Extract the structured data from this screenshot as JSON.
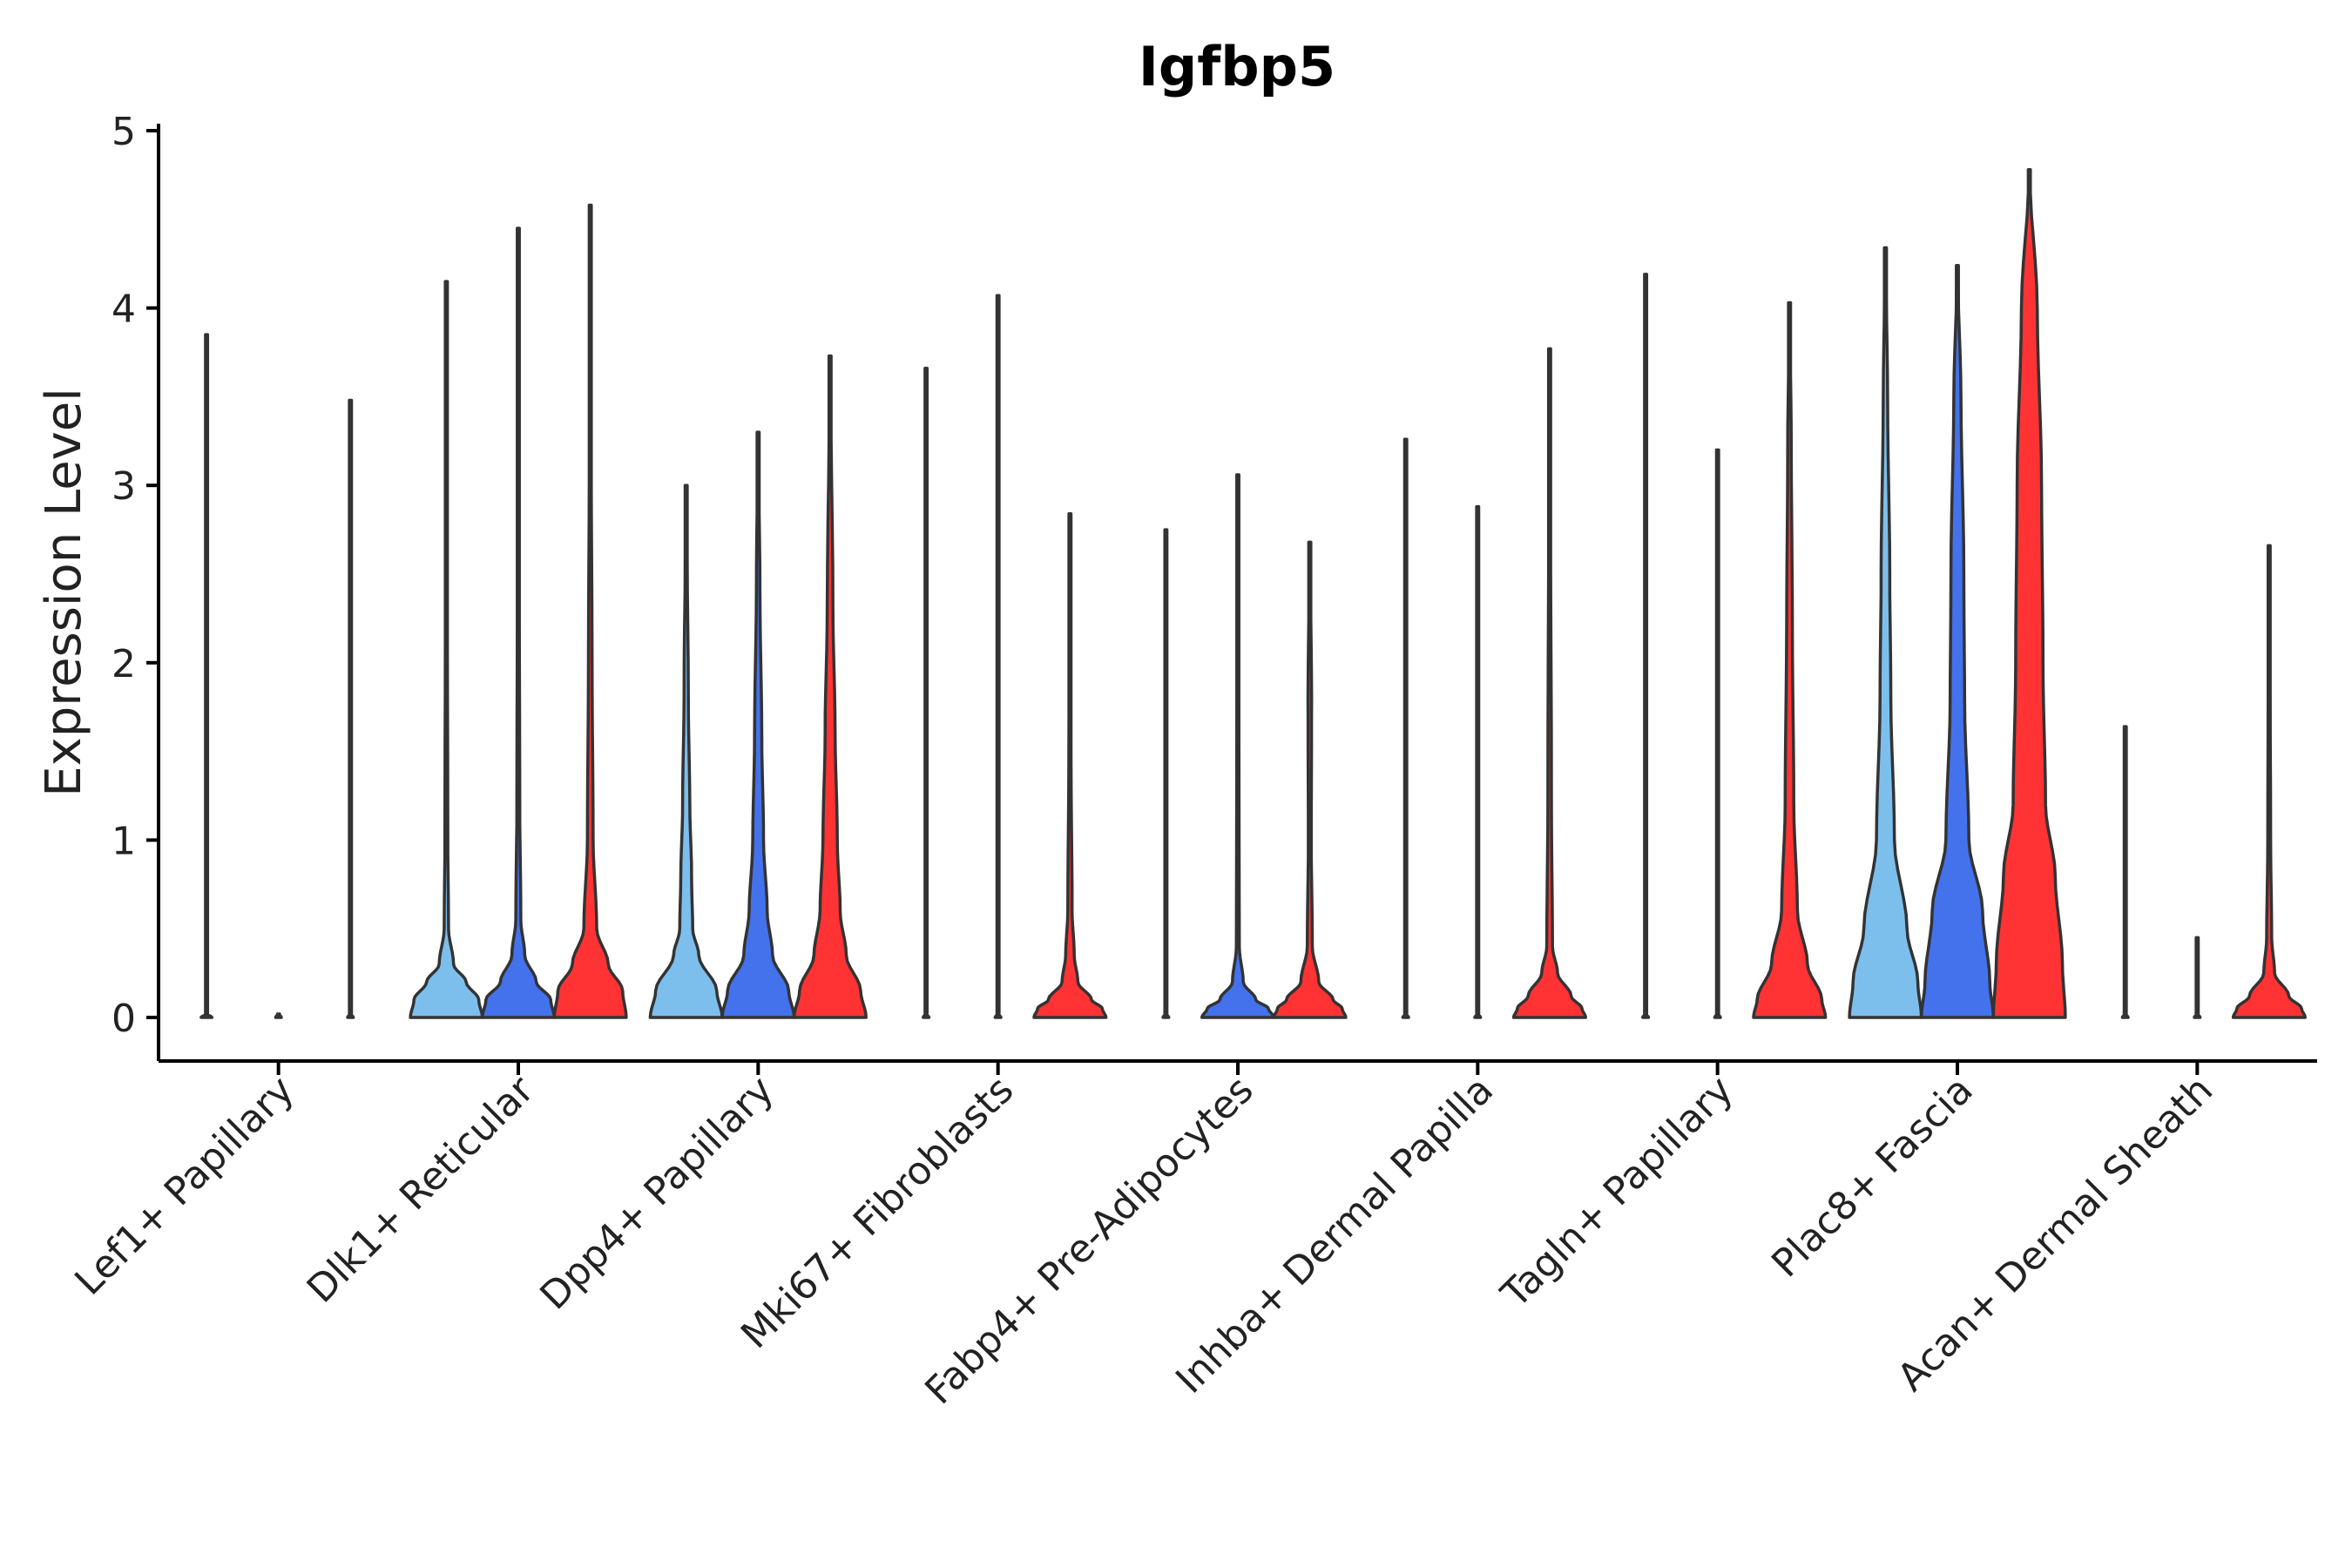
{
  "chart_data": {
    "type": "violin",
    "title": "Igfbp5",
    "xlabel": "",
    "ylabel": "Expression Level",
    "ylim": [
      -0.25,
      5.05
    ],
    "yticks": [
      0,
      1,
      2,
      3,
      4,
      5
    ],
    "grid": false,
    "legend": "none",
    "series": [
      {
        "name": "group 1",
        "color": "#7DBFEC"
      },
      {
        "name": "group 2",
        "color": "#4472EC"
      },
      {
        "name": "group 3",
        "color": "#FF3333"
      }
    ],
    "categories": [
      {
        "label": "Lef1+ Papillary",
        "violins": [
          {
            "max": 3.85,
            "shape": [
              [
                0,
                0.15
              ],
              [
                0.02,
                0.01
              ],
              [
                3.85,
                0.004
              ]
            ]
          },
          {
            "max": 0.0,
            "shape": [
              [
                0,
                0.08
              ],
              [
                0.02,
                0.01
              ]
            ]
          },
          {
            "max": 3.48,
            "shape": [
              [
                0,
                0.08
              ],
              [
                0.02,
                0.01
              ],
              [
                3.48,
                0.004
              ]
            ]
          }
        ]
      },
      {
        "label": "Dlk1+ Reticular",
        "violins": [
          {
            "max": 4.15,
            "shape": [
              [
                0,
                1.0
              ],
              [
                0.1,
                0.9
              ],
              [
                0.2,
                0.55
              ],
              [
                0.3,
                0.2
              ],
              [
                0.5,
                0.06
              ],
              [
                1.0,
                0.04
              ],
              [
                2.6,
                0.025
              ],
              [
                4.15,
                0.006
              ]
            ]
          },
          {
            "max": 4.45,
            "shape": [
              [
                0,
                1.0
              ],
              [
                0.1,
                0.9
              ],
              [
                0.2,
                0.5
              ],
              [
                0.35,
                0.18
              ],
              [
                0.55,
                0.07
              ],
              [
                1.2,
                0.04
              ],
              [
                2.7,
                0.025
              ],
              [
                4.45,
                0.006
              ]
            ]
          },
          {
            "max": 4.58,
            "shape": [
              [
                0,
                1.0
              ],
              [
                0.15,
                0.9
              ],
              [
                0.3,
                0.5
              ],
              [
                0.5,
                0.18
              ],
              [
                1.0,
                0.08
              ],
              [
                2.0,
                0.05
              ],
              [
                3.0,
                0.03
              ],
              [
                4.58,
                0.006
              ]
            ]
          }
        ]
      },
      {
        "label": "Dpp4+ Papillary",
        "violins": [
          {
            "max": 3.0,
            "shape": [
              [
                0,
                1.0
              ],
              [
                0.15,
                0.85
              ],
              [
                0.35,
                0.35
              ],
              [
                0.5,
                0.18
              ],
              [
                0.8,
                0.15
              ],
              [
                1.2,
                0.1
              ],
              [
                1.8,
                0.06
              ],
              [
                3.0,
                0.006
              ]
            ]
          },
          {
            "max": 3.3,
            "shape": [
              [
                0,
                1.0
              ],
              [
                0.15,
                0.85
              ],
              [
                0.35,
                0.4
              ],
              [
                0.6,
                0.25
              ],
              [
                1.0,
                0.15
              ],
              [
                1.6,
                0.1
              ],
              [
                2.4,
                0.05
              ],
              [
                3.3,
                0.006
              ]
            ]
          },
          {
            "max": 3.73,
            "shape": [
              [
                0,
                1.0
              ],
              [
                0.15,
                0.85
              ],
              [
                0.35,
                0.45
              ],
              [
                0.6,
                0.28
              ],
              [
                1.0,
                0.2
              ],
              [
                1.6,
                0.14
              ],
              [
                2.3,
                0.08
              ],
              [
                3.73,
                0.006
              ]
            ]
          }
        ]
      },
      {
        "label": "Mki67+ Fibroblasts",
        "violins": [
          {
            "max": 3.66,
            "shape": [
              [
                0,
                0.08
              ],
              [
                0.02,
                0.01
              ],
              [
                3.66,
                0.004
              ]
            ]
          },
          {
            "max": 4.07,
            "shape": [
              [
                0,
                0.08
              ],
              [
                0.02,
                0.01
              ],
              [
                4.07,
                0.004
              ]
            ]
          },
          {
            "max": 2.84,
            "shape": [
              [
                0,
                1.0
              ],
              [
                0.05,
                0.9
              ],
              [
                0.1,
                0.6
              ],
              [
                0.2,
                0.22
              ],
              [
                0.35,
                0.12
              ],
              [
                0.6,
                0.06
              ],
              [
                1.5,
                0.03
              ],
              [
                2.84,
                0.006
              ]
            ]
          }
        ]
      },
      {
        "label": "Fabp4+ Pre-Adipocytes",
        "violins": [
          {
            "max": 2.75,
            "shape": [
              [
                0,
                0.08
              ],
              [
                0.02,
                0.01
              ],
              [
                2.75,
                0.004
              ]
            ]
          },
          {
            "max": 3.06,
            "shape": [
              [
                0,
                1.0
              ],
              [
                0.05,
                0.85
              ],
              [
                0.1,
                0.5
              ],
              [
                0.2,
                0.15
              ],
              [
                0.4,
                0.04
              ],
              [
                3.06,
                0.006
              ]
            ]
          },
          {
            "max": 2.68,
            "shape": [
              [
                0,
                1.0
              ],
              [
                0.05,
                0.9
              ],
              [
                0.1,
                0.65
              ],
              [
                0.2,
                0.25
              ],
              [
                0.4,
                0.07
              ],
              [
                1.0,
                0.04
              ],
              [
                1.8,
                0.05
              ],
              [
                2.68,
                0.006
              ]
            ]
          }
        ]
      },
      {
        "label": "Inhba+ Dermal Papilla",
        "violins": [
          {
            "max": 3.26,
            "shape": [
              [
                0,
                0.08
              ],
              [
                0.02,
                0.01
              ],
              [
                3.26,
                0.004
              ]
            ]
          },
          {
            "max": 2.88,
            "shape": [
              [
                0,
                0.08
              ],
              [
                0.02,
                0.01
              ],
              [
                2.88,
                0.004
              ]
            ]
          },
          {
            "max": 3.77,
            "shape": [
              [
                0,
                1.0
              ],
              [
                0.05,
                0.9
              ],
              [
                0.12,
                0.6
              ],
              [
                0.25,
                0.22
              ],
              [
                0.4,
                0.08
              ],
              [
                1.2,
                0.05
              ],
              [
                3.77,
                0.006
              ]
            ]
          }
        ]
      },
      {
        "label": "Tagln+ Papillary",
        "violins": [
          {
            "max": 4.19,
            "shape": [
              [
                0,
                0.08
              ],
              [
                0.02,
                0.01
              ],
              [
                4.19,
                0.004
              ]
            ]
          },
          {
            "max": 3.2,
            "shape": [
              [
                0,
                0.08
              ],
              [
                0.02,
                0.01
              ],
              [
                3.2,
                0.004
              ]
            ]
          },
          {
            "max": 4.03,
            "shape": [
              [
                0,
                1.0
              ],
              [
                0.1,
                0.9
              ],
              [
                0.3,
                0.5
              ],
              [
                0.6,
                0.22
              ],
              [
                1.2,
                0.12
              ],
              [
                2.2,
                0.08
              ],
              [
                3.2,
                0.05
              ],
              [
                4.03,
                0.006
              ]
            ]
          }
        ]
      },
      {
        "label": "Plac8+ Fascia",
        "violins": [
          {
            "max": 4.34,
            "shape": [
              [
                0,
                1.0
              ],
              [
                0.2,
                0.9
              ],
              [
                0.5,
                0.6
              ],
              [
                1.0,
                0.25
              ],
              [
                1.8,
                0.15
              ],
              [
                2.5,
                0.12
              ],
              [
                3.5,
                0.06
              ],
              [
                4.34,
                0.006
              ]
            ]
          },
          {
            "max": 4.24,
            "shape": [
              [
                0,
                1.0
              ],
              [
                0.2,
                0.9
              ],
              [
                0.6,
                0.7
              ],
              [
                1.0,
                0.32
              ],
              [
                1.8,
                0.2
              ],
              [
                2.5,
                0.18
              ],
              [
                3.5,
                0.1
              ],
              [
                4.24,
                0.006
              ]
            ]
          },
          {
            "max": 4.78,
            "shape": [
              [
                0,
                1.0
              ],
              [
                0.3,
                0.92
              ],
              [
                0.8,
                0.72
              ],
              [
                1.2,
                0.45
              ],
              [
                2.0,
                0.38
              ],
              [
                3.0,
                0.34
              ],
              [
                4.0,
                0.22
              ],
              [
                4.78,
                0.006
              ]
            ]
          }
        ]
      },
      {
        "label": "Acan+ Dermal Sheath",
        "violins": [
          {
            "max": 1.64,
            "shape": [
              [
                0,
                0.08
              ],
              [
                0.02,
                0.01
              ],
              [
                1.64,
                0.004
              ]
            ]
          },
          {
            "max": 0.45,
            "shape": [
              [
                0,
                0.08
              ],
              [
                0.02,
                0.01
              ],
              [
                0.45,
                0.004
              ]
            ]
          },
          {
            "max": 2.66,
            "shape": [
              [
                0,
                1.0
              ],
              [
                0.05,
                0.9
              ],
              [
                0.12,
                0.55
              ],
              [
                0.25,
                0.15
              ],
              [
                0.45,
                0.07
              ],
              [
                1.0,
                0.04
              ],
              [
                2.66,
                0.006
              ]
            ]
          }
        ]
      }
    ]
  }
}
